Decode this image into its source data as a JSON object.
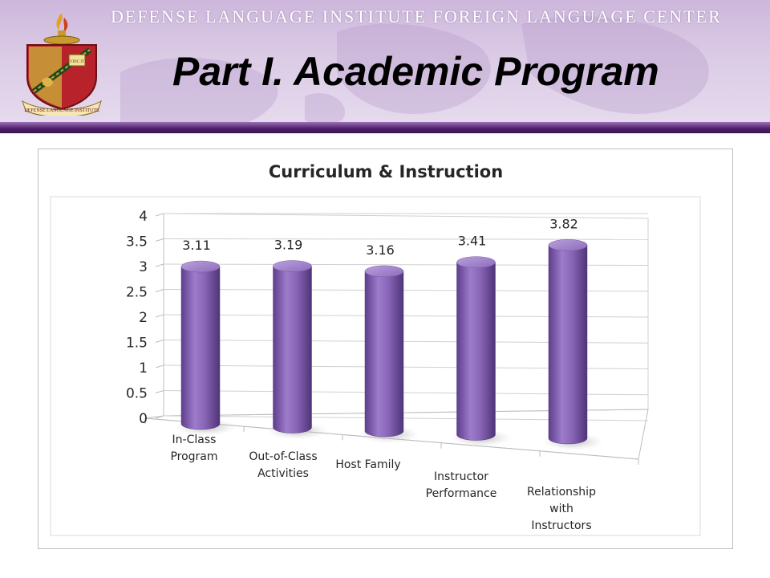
{
  "header": {
    "institute_name": "DEFENSE LANGUAGE INSTITUTE FOREIGN LANGUAGE CENTER",
    "slide_title": "Part I. Academic Program",
    "crest_banner_text": "DEFENSE LANGUAGE INSTITUTE",
    "crest_panel_text": "VINC IT"
  },
  "colors": {
    "accent_purple": "#8a66b8",
    "header_band": "#4b1f66",
    "header_background": "#d6c4e2"
  },
  "chart_data": {
    "type": "bar",
    "style": "3d-cylinder",
    "title": "Curriculum & Instruction",
    "categories": [
      [
        "In-Class",
        "Program"
      ],
      [
        "Out-of-Class",
        "Activities"
      ],
      [
        "Host Family"
      ],
      [
        "Instructor",
        "Performance"
      ],
      [
        "Relationship",
        "with",
        "Instructors"
      ]
    ],
    "values": [
      3.11,
      3.19,
      3.16,
      3.41,
      3.82
    ],
    "data_labels": [
      "3.11",
      "3.19",
      "3.16",
      "3.41",
      "3.82"
    ],
    "ylim": [
      0,
      4
    ],
    "yticks": [
      "0",
      "0.5",
      "1",
      "1.5",
      "2",
      "2.5",
      "3",
      "3.5",
      "4"
    ],
    "ytick_values": [
      0,
      0.5,
      1,
      1.5,
      2,
      2.5,
      3,
      3.5,
      4
    ],
    "xlabel": "",
    "ylabel": "",
    "grid": true,
    "legend": "none",
    "bar_color": "#8a66b8"
  }
}
